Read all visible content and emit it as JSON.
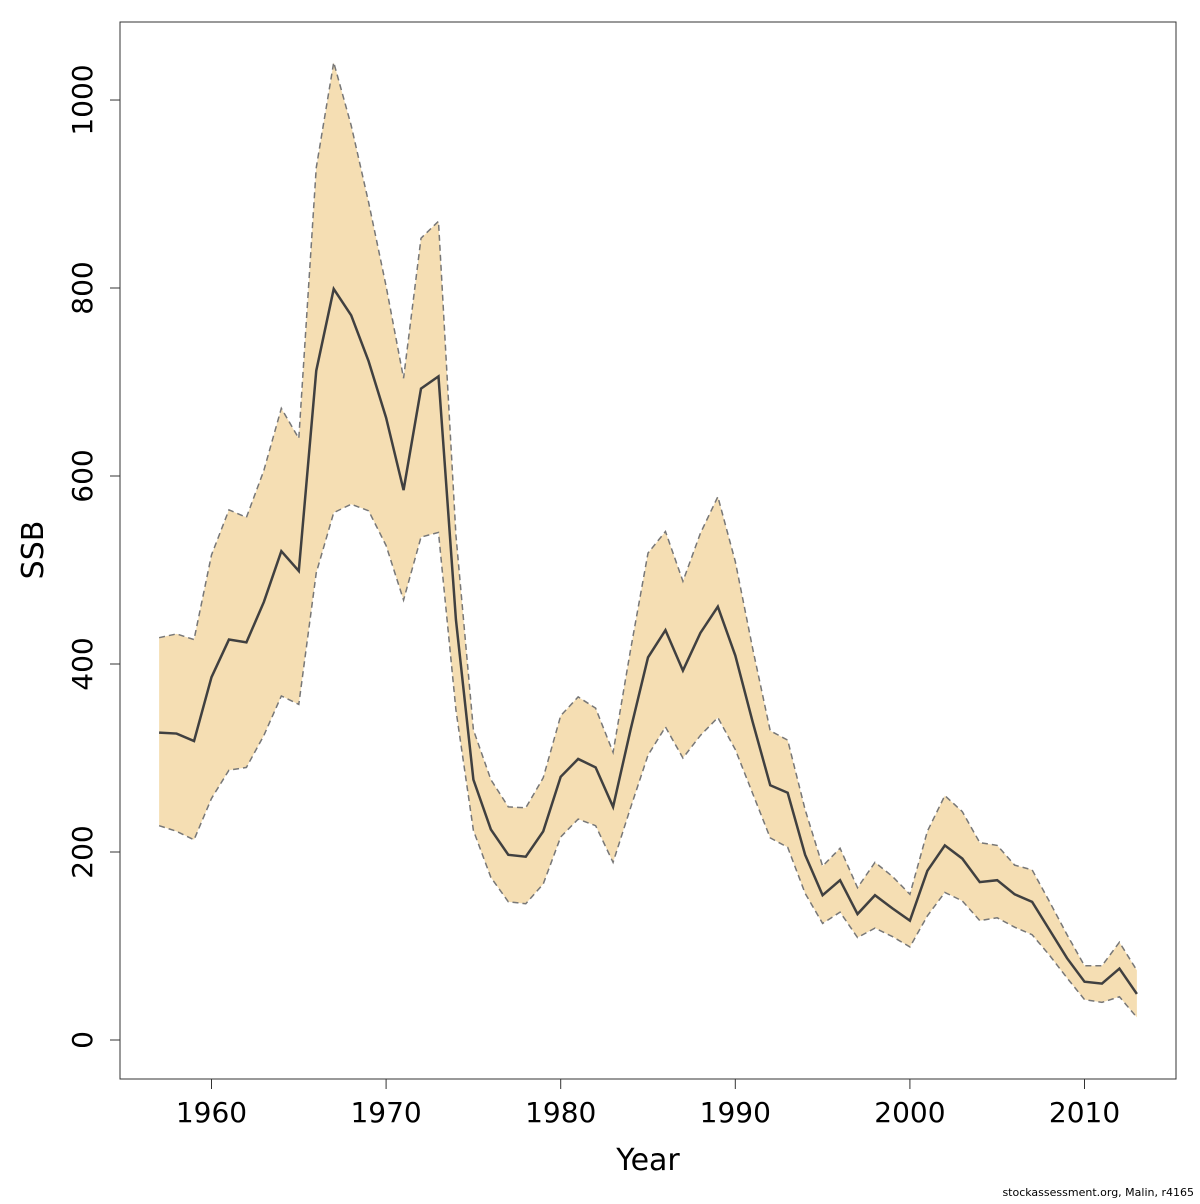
{
  "chart_data": {
    "type": "line",
    "xlabel": "Year",
    "ylabel": "SSB",
    "footnote": "stockassessment.org, Malin, r4165",
    "x": [
      1957,
      1958,
      1959,
      1960,
      1961,
      1962,
      1963,
      1964,
      1965,
      1966,
      1967,
      1968,
      1969,
      1970,
      1971,
      1972,
      1973,
      1974,
      1975,
      1976,
      1977,
      1978,
      1979,
      1980,
      1981,
      1982,
      1983,
      1984,
      1985,
      1986,
      1987,
      1988,
      1989,
      1990,
      1991,
      1992,
      1993,
      1994,
      1995,
      1996,
      1997,
      1998,
      1999,
      2000,
      2001,
      2002,
      2003,
      2004,
      2005,
      2006,
      2007,
      2008,
      2009,
      2010,
      2011,
      2012,
      2013
    ],
    "values": [
      327,
      326,
      318,
      386,
      426,
      423,
      466,
      520,
      499,
      712,
      799,
      771,
      722,
      662,
      585,
      693,
      706,
      447,
      277,
      224,
      197,
      195,
      222,
      280,
      299,
      290,
      248,
      330,
      407,
      436,
      393,
      433,
      461,
      409,
      338,
      271,
      263,
      197,
      154,
      170,
      134,
      154,
      140,
      127,
      180,
      207,
      193,
      168,
      170,
      155,
      147,
      117,
      87,
      62,
      60,
      76,
      49
    ],
    "upper": [
      428,
      432,
      426,
      516,
      564,
      556,
      606,
      672,
      640,
      928,
      1040,
      973,
      891,
      802,
      704,
      853,
      871,
      537,
      330,
      277,
      248,
      247,
      279,
      345,
      365,
      353,
      306,
      415,
      518,
      541,
      488,
      539,
      578,
      509,
      416,
      329,
      319,
      245,
      185,
      204,
      162,
      189,
      174,
      155,
      222,
      260,
      243,
      210,
      207,
      186,
      181,
      147,
      112,
      79,
      79,
      104,
      74
    ],
    "lower": [
      228,
      222,
      213,
      257,
      287,
      290,
      324,
      366,
      357,
      497,
      561,
      570,
      563,
      526,
      468,
      535,
      540,
      351,
      223,
      173,
      147,
      145,
      166,
      216,
      235,
      228,
      189,
      247,
      303,
      333,
      300,
      324,
      343,
      309,
      262,
      215,
      205,
      156,
      124,
      136,
      109,
      119,
      110,
      99,
      132,
      157,
      148,
      127,
      130,
      120,
      112,
      90,
      66,
      43,
      40,
      46,
      24
    ],
    "color": "#404040",
    "band_color": "#f5deb3",
    "band_line_color": "#777777",
    "xlim": [
      1954.76,
      2015.24
    ],
    "ylim": [
      -41.5,
      1083
    ],
    "xticks": [
      1960,
      1970,
      1980,
      1990,
      2000,
      2010
    ],
    "yticks": [
      0,
      200,
      400,
      600,
      800,
      1000
    ]
  }
}
